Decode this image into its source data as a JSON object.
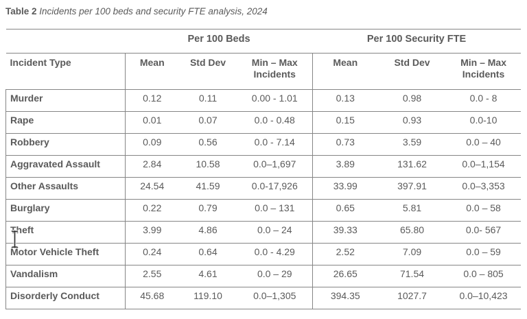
{
  "title": {
    "label": "Table 2",
    "caption": "Incidents per 100 beds and security FTE analysis, 2024"
  },
  "table": {
    "group_headers": {
      "beds": "Per 100 Beds",
      "fte": "Per 100 Security FTE"
    },
    "col_headers": {
      "incident_type": "Incident Type",
      "mean": "Mean",
      "std_dev": "Std Dev",
      "min_max_line1": "Min – Max",
      "min_max_line2": "Incidents"
    },
    "rows": [
      {
        "incident_type": "Murder",
        "beds": {
          "mean": "0.12",
          "std_dev": "0.11",
          "min_max": "0.00 - 1.01"
        },
        "fte": {
          "mean": "0.13",
          "std_dev": "0.98",
          "min_max": "0.0 - 8"
        }
      },
      {
        "incident_type": "Rape",
        "beds": {
          "mean": "0.01",
          "std_dev": "0.07",
          "min_max": "0.0 - 0.48"
        },
        "fte": {
          "mean": "0.15",
          "std_dev": "0.93",
          "min_max": "0.0-10"
        }
      },
      {
        "incident_type": "Robbery",
        "beds": {
          "mean": "0.09",
          "std_dev": "0.56",
          "min_max": "0.0 - 7.14"
        },
        "fte": {
          "mean": "0.73",
          "std_dev": "3.59",
          "min_max": "0.0 – 40"
        }
      },
      {
        "incident_type": "Aggravated Assault",
        "beds": {
          "mean": "2.84",
          "std_dev": "10.58",
          "min_max": "0.0–1,697"
        },
        "fte": {
          "mean": "3.89",
          "std_dev": "131.62",
          "min_max": "0.0–1,154"
        }
      },
      {
        "incident_type": "Other Assaults",
        "beds": {
          "mean": "24.54",
          "std_dev": "41.59",
          "min_max": "0.0-17,926"
        },
        "fte": {
          "mean": "33.99",
          "std_dev": "397.91",
          "min_max": "0.0–3,353"
        }
      },
      {
        "incident_type": "Burglary",
        "beds": {
          "mean": "0.22",
          "std_dev": "0.79",
          "min_max": "0.0 – 131"
        },
        "fte": {
          "mean": "0.65",
          "std_dev": "5.81",
          "min_max": "0.0 – 58"
        }
      },
      {
        "incident_type": "Theft",
        "beds": {
          "mean": "3.99",
          "std_dev": "4.86",
          "min_max": "0.0 – 24"
        },
        "fte": {
          "mean": "39.33",
          "std_dev": "65.80",
          "min_max": "0.0- 567"
        }
      },
      {
        "incident_type": "Motor Vehicle Theft",
        "beds": {
          "mean": "0.24",
          "std_dev": "0.64",
          "min_max": "0.0 - 4.29"
        },
        "fte": {
          "mean": "2.52",
          "std_dev": "7.09",
          "min_max": "0.0 – 59"
        }
      },
      {
        "incident_type": "Vandalism",
        "beds": {
          "mean": "2.55",
          "std_dev": "4.61",
          "min_max": "0.0 – 29"
        },
        "fte": {
          "mean": "26.65",
          "std_dev": "71.54",
          "min_max": "0.0 – 805"
        }
      },
      {
        "incident_type": "Disorderly Conduct",
        "beds": {
          "mean": "45.68",
          "std_dev": "119.10",
          "min_max": "0.0–1,305"
        },
        "fte": {
          "mean": "394.35",
          "std_dev": "1027.7",
          "min_max": "0.0–10,423"
        }
      }
    ]
  },
  "colors": {
    "text": "#5a5a5a",
    "border": "#858585",
    "background": "#ffffff",
    "cursor": "#333333"
  },
  "cursor": {
    "type": "text-ibeam"
  }
}
